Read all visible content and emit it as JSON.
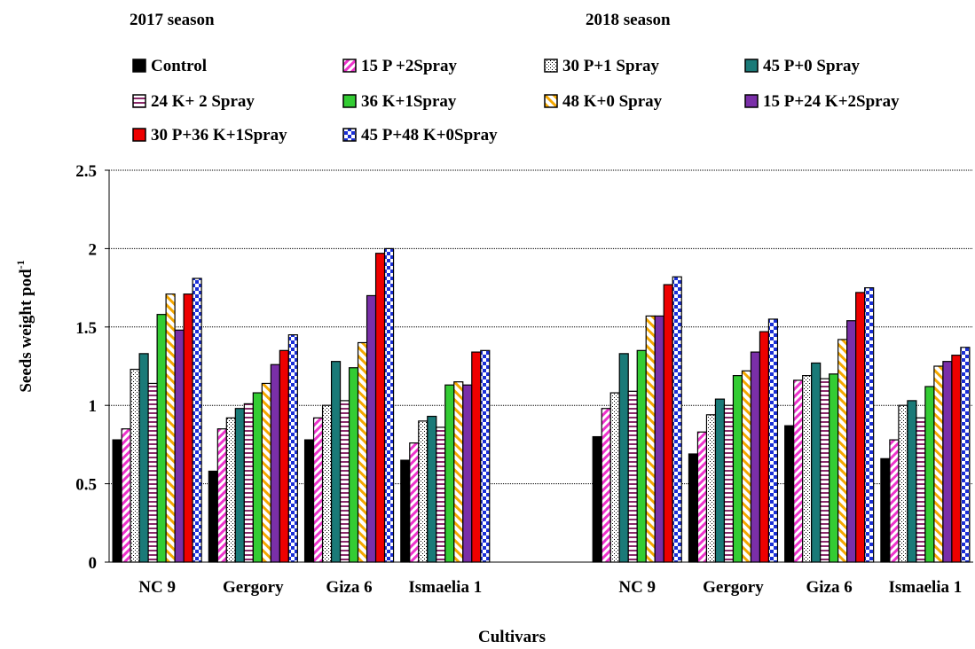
{
  "chart_data": {
    "type": "bar",
    "season_labels": [
      "2017 season",
      "2018 season"
    ],
    "categories": [
      "NC 9",
      "Gergory",
      "Giza 6",
      "Ismaelia 1",
      "NC 9",
      "Gergory",
      "Giza 6",
      "Ismaelia 1"
    ],
    "xlabel": "Cultivars",
    "ylabel": "Seeds weight pod",
    "ylabel_superscript": "-1",
    "ylim": [
      0,
      2.5
    ],
    "yticks": [
      "0",
      "0.5",
      "1",
      "1.5",
      "2",
      "2.5"
    ],
    "grid": true,
    "legend_position": "top",
    "series": [
      {
        "name": "Control",
        "values": [
          0.78,
          0.58,
          0.78,
          0.65,
          0.8,
          0.69,
          0.87,
          0.66
        ]
      },
      {
        "name": "15 P +2Spray",
        "values": [
          0.85,
          0.85,
          0.92,
          0.76,
          0.98,
          0.83,
          1.16,
          0.78
        ]
      },
      {
        "name": "30 P+1 Spray",
        "values": [
          1.23,
          0.92,
          1.0,
          0.9,
          1.08,
          0.94,
          1.19,
          1.0
        ]
      },
      {
        "name": "45 P+0 Spray",
        "values": [
          1.33,
          0.98,
          1.28,
          0.93,
          1.33,
          1.04,
          1.27,
          1.03
        ]
      },
      {
        "name": "24 K+ 2 Spray",
        "values": [
          1.14,
          1.01,
          1.03,
          0.86,
          1.09,
          1.0,
          1.17,
          0.92
        ]
      },
      {
        "name": "36 K+1Spray",
        "values": [
          1.58,
          1.08,
          1.24,
          1.13,
          1.35,
          1.19,
          1.2,
          1.12
        ]
      },
      {
        "name": "48 K+0 Spray",
        "values": [
          1.71,
          1.14,
          1.4,
          1.15,
          1.57,
          1.22,
          1.42,
          1.25
        ]
      },
      {
        "name": "15 P+24 K+2Spray",
        "values": [
          1.48,
          1.26,
          1.7,
          1.13,
          1.57,
          1.34,
          1.54,
          1.28
        ]
      },
      {
        "name": "30 P+36 K+1Spray",
        "values": [
          1.71,
          1.35,
          1.97,
          1.34,
          1.77,
          1.47,
          1.72,
          1.32
        ]
      },
      {
        "name": "45 P+48 K+0Spray",
        "values": [
          1.81,
          1.45,
          2.0,
          1.35,
          1.82,
          1.55,
          1.75,
          1.37
        ]
      }
    ]
  }
}
